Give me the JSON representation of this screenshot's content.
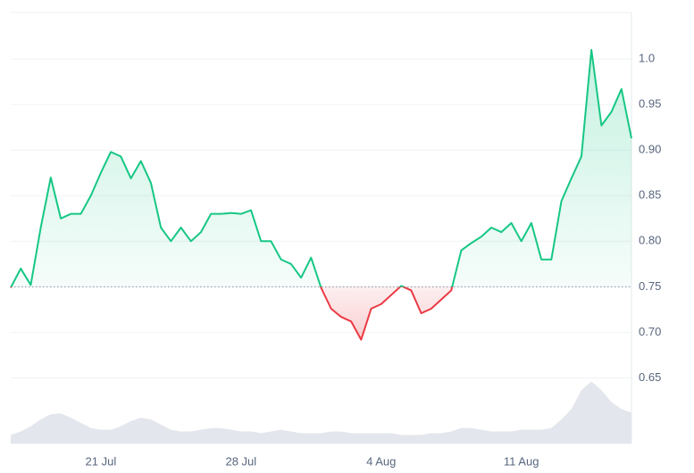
{
  "chart_data": {
    "type": "line",
    "categories": [
      null,
      null,
      null,
      null,
      null,
      null,
      null,
      null,
      null,
      "21 Jul",
      null,
      null,
      null,
      null,
      null,
      null,
      null,
      null,
      null,
      null,
      null,
      null,
      null,
      "28 Jul",
      null,
      null,
      null,
      null,
      null,
      null,
      null,
      null,
      null,
      null,
      null,
      null,
      null,
      "4 Aug",
      null,
      null,
      null,
      null,
      null,
      null,
      null,
      null,
      null,
      null,
      null,
      null,
      null,
      "11 Aug",
      null,
      null,
      null,
      null,
      null,
      null,
      null,
      null,
      null,
      null,
      null
    ],
    "series": [
      {
        "name": "Price",
        "color": "#16c784",
        "negative_color": "#ea3943",
        "values": [
          0.749,
          0.77,
          0.752,
          0.815,
          0.87,
          0.825,
          0.83,
          0.83,
          0.85,
          0.875,
          0.898,
          0.893,
          0.869,
          0.888,
          0.864,
          0.815,
          0.8,
          0.815,
          0.8,
          0.81,
          0.83,
          0.83,
          0.831,
          0.83,
          0.834,
          0.8,
          0.8,
          0.78,
          0.775,
          0.76,
          0.782,
          0.749,
          0.726,
          0.717,
          0.712,
          0.692,
          0.726,
          0.731,
          0.741,
          0.751,
          0.746,
          0.721,
          0.726,
          0.736,
          0.746,
          0.79,
          0.798,
          0.805,
          0.815,
          0.81,
          0.82,
          0.8,
          0.82,
          0.78,
          0.78,
          0.844,
          0.869,
          0.893,
          1.01,
          0.927,
          0.942,
          0.967,
          0.913
        ]
      },
      {
        "name": "Volume",
        "color": "#e3e6ec",
        "axis": "y2",
        "values": [
          10,
          14,
          20,
          28,
          34,
          35,
          30,
          24,
          18,
          16,
          16,
          20,
          26,
          30,
          28,
          22,
          16,
          14,
          14,
          16,
          18,
          18,
          16,
          14,
          14,
          12,
          14,
          16,
          14,
          12,
          12,
          12,
          14,
          14,
          12,
          12,
          12,
          12,
          12,
          10,
          10,
          10,
          12,
          12,
          14,
          18,
          18,
          16,
          14,
          14,
          14,
          16,
          16,
          16,
          18,
          28,
          40,
          62,
          72,
          62,
          48,
          40,
          36
        ]
      }
    ],
    "baseline": 0.75,
    "ylim": [
      0.578,
      1.051
    ],
    "yticks": [
      0.65,
      {
        "value": 0.7,
        "label": "0.70"
      },
      0.75,
      {
        "value": 0.8,
        "label": "0.80"
      },
      0.85,
      {
        "value": 0.9,
        "label": "0.90"
      },
      0.95,
      {
        "value": 1,
        "label": "1.0"
      }
    ],
    "y2lim": [
      0,
      500
    ],
    "grid": true
  }
}
